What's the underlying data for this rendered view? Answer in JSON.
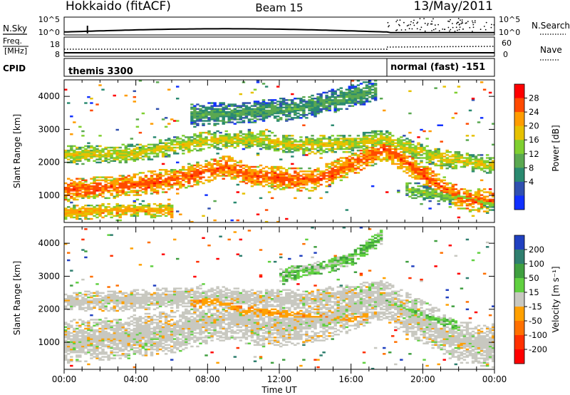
{
  "header": {
    "station": "Hokkaido (fitACF)",
    "beam": "Beam 15",
    "date": "13/May/2011"
  },
  "summary": {
    "nsky_label": "N.Sky",
    "nsearch_label": "N.Search",
    "noise_ticks": [
      "10^5",
      "10^0"
    ],
    "freq_label_line1": "Freq.",
    "freq_label_line2": "[MHz]",
    "freq_ticks": [
      "18",
      "8"
    ],
    "nave_label": "Nave",
    "nave_ticks": [
      "60",
      "0"
    ],
    "cpid_label": "CPID",
    "cpid_segments": [
      {
        "label": "themis 3300",
        "start_hour": 0,
        "end_hour": 18
      },
      {
        "label": "normal (fast) -151",
        "start_hour": 18,
        "end_hour": 24
      }
    ]
  },
  "chart_data": [
    {
      "type": "heatmap",
      "quantity": "power",
      "ylabel": "Slant Range [km]",
      "xlabel": "",
      "xlim": [
        0,
        24
      ],
      "ylim": [
        180,
        4500
      ],
      "yticks": [
        1000,
        2000,
        3000,
        4000
      ],
      "colorbar": {
        "label": "Power [dB]",
        "ticks": [
          "28",
          "24",
          "20",
          "16",
          "12",
          "8",
          "4"
        ],
        "colors": [
          "#ff0000",
          "#ff4a00",
          "#ff9c00",
          "#e6c100",
          "#7fcf30",
          "#5aa850",
          "#2a8a70",
          "#3050b0",
          "#1030ff"
        ]
      },
      "bands": [
        {
          "t": [
            0,
            3,
            6,
            9,
            10.5,
            12,
            14,
            16,
            17.8,
            18.5,
            20,
            22,
            24
          ],
          "r": [
            1150,
            1250,
            1450,
            1850,
            1600,
            1500,
            1450,
            1900,
            2400,
            2200,
            1600,
            900,
            800
          ],
          "width": 350,
          "level": 1
        },
        {
          "t": [
            0,
            4,
            8,
            10.5,
            13,
            16,
            17.8,
            19,
            21,
            24
          ],
          "r": [
            2200,
            2250,
            2650,
            2700,
            2500,
            2550,
            2700,
            2450,
            2100,
            1900
          ],
          "width": 280,
          "level": 3
        },
        {
          "t": [
            7,
            10,
            13,
            15.5,
            17.5
          ],
          "r": [
            3400,
            3500,
            3600,
            3900,
            4200
          ],
          "width": 350,
          "level": 5
        },
        {
          "t": [
            0,
            2,
            4,
            6
          ],
          "r": [
            450,
            500,
            550,
            500
          ],
          "width": 220,
          "level": 2
        },
        {
          "t": [
            19,
            21,
            23,
            24
          ],
          "r": [
            1200,
            1000,
            850,
            700
          ],
          "width": 260,
          "level": 4
        }
      ]
    },
    {
      "type": "heatmap",
      "quantity": "velocity",
      "ylabel": "Slant Range [km]",
      "xlabel": "Time UT",
      "xlim": [
        0,
        24
      ],
      "ylim": [
        180,
        4500
      ],
      "yticks": [
        1000,
        2000,
        3000,
        4000
      ],
      "xticks": [
        "00:00",
        "04:00",
        "08:00",
        "12:00",
        "16:00",
        "20:00",
        "00:00"
      ],
      "colorbar": {
        "label": "Velocity [m s⁻¹]",
        "ticks": [
          "200",
          "100",
          "50",
          "15",
          "-15",
          "-50",
          "-100",
          "-200"
        ],
        "colors": [
          "#2040c0",
          "#2f7f6f",
          "#3f9f3f",
          "#60d040",
          "#c8c8c0",
          "#ffa000",
          "#ff7000",
          "#ff3000",
          "#ff0000"
        ]
      },
      "bands": [
        {
          "t": [
            0,
            3,
            6,
            9,
            10.5,
            12,
            14,
            16,
            17.8,
            18.5,
            20,
            22,
            24
          ],
          "r": [
            1000,
            1100,
            1300,
            1700,
            1550,
            1500,
            1600,
            1950,
            2300,
            2050,
            1600,
            1000,
            850
          ],
          "width": 650,
          "level": 0
        },
        {
          "t": [
            0,
            4,
            8,
            10.5,
            13,
            16,
            17.8
          ],
          "r": [
            2200,
            2250,
            2400,
            2300,
            2250,
            2400,
            2600
          ],
          "width": 320,
          "level": 0
        },
        {
          "t": [
            7,
            8.5,
            10,
            16,
            17
          ],
          "r": [
            2200,
            2300,
            1900,
            1700,
            1800
          ],
          "width": 200,
          "level": -1
        },
        {
          "t": [
            17.8,
            19,
            20.5,
            22
          ],
          "r": [
            2300,
            2000,
            1700,
            1400
          ],
          "width": 220,
          "level": 1
        },
        {
          "t": [
            12,
            14,
            16,
            17.8
          ],
          "r": [
            3000,
            3200,
            3500,
            4200
          ],
          "width": 220,
          "level": 2
        }
      ]
    }
  ]
}
